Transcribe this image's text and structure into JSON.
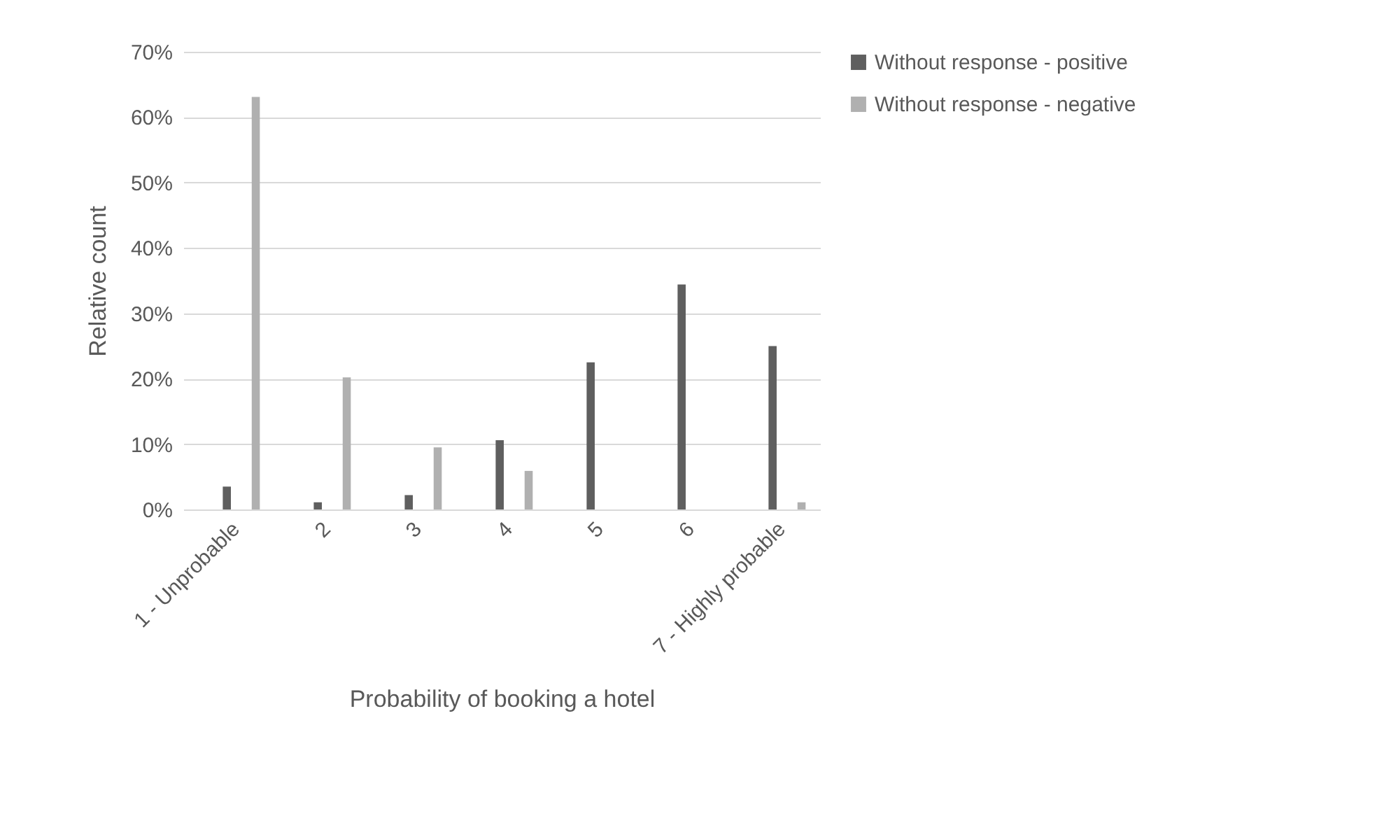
{
  "chart_data": {
    "type": "bar",
    "xlabel": "Probability of booking a hotel",
    "ylabel": "Relative count",
    "categories": [
      "1 - Unprobable",
      "2",
      "3",
      "4",
      "5",
      "6",
      "7 - Highly probable"
    ],
    "series": [
      {
        "name": "Without response - positive",
        "color": "#5f5f5f",
        "values": [
          3.5,
          1.1,
          2.2,
          10.6,
          22.5,
          34.4,
          25.0
        ]
      },
      {
        "name": "Without response - negative",
        "color": "#b0b0b0",
        "values": [
          63.1,
          20.2,
          9.5,
          5.9,
          0,
          0,
          1.1
        ]
      }
    ],
    "ylim": [
      0,
      70
    ],
    "yticks": [
      {
        "value": 0,
        "label": "0%"
      },
      {
        "value": 10,
        "label": "10%"
      },
      {
        "value": 20,
        "label": "20%"
      },
      {
        "value": 30,
        "label": "30%"
      },
      {
        "value": 40,
        "label": "40%"
      },
      {
        "value": 50,
        "label": "50%"
      },
      {
        "value": 60,
        "label": "60%"
      },
      {
        "value": 70,
        "label": "70%"
      }
    ],
    "grid": "y",
    "legend": "right"
  }
}
